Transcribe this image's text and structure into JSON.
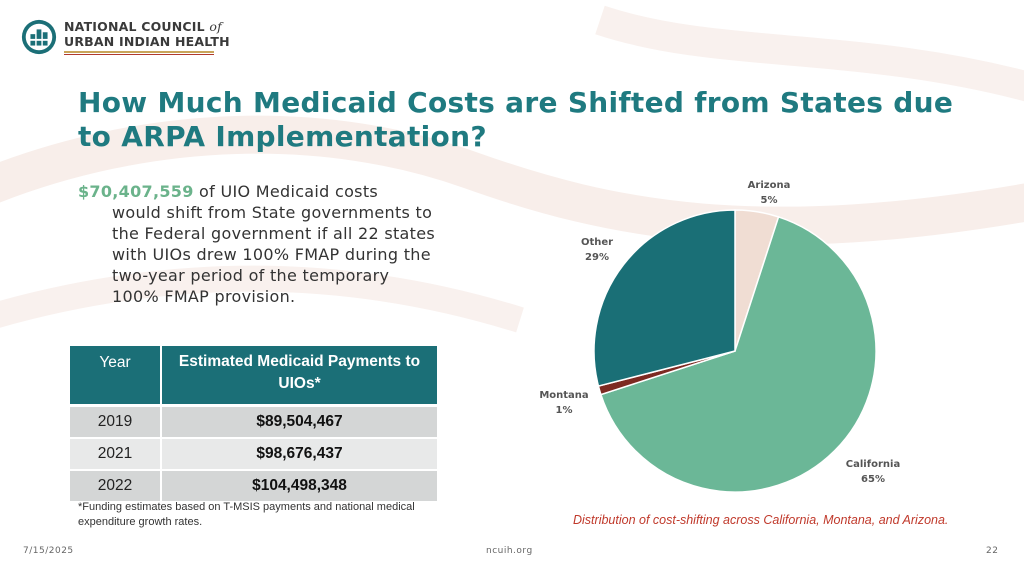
{
  "logo": {
    "line1": "NATIONAL COUNCIL",
    "line1_italic": "of",
    "line2": "URBAN INDIAN HEALTH"
  },
  "title": "How Much Medicaid Costs are Shifted from States due to ARPA Implementation?",
  "intro": {
    "amount": "$70,407,559",
    "first_line_rest": " of UIO Medicaid costs",
    "continuation": "would shift from State governments to the Federal government if all 22 states with UIOs drew 100% FMAP during the two-year period of the temporary 100% FMAP provision."
  },
  "table": {
    "headers": [
      "Year",
      "Estimated Medicaid Payments to UIOs*"
    ],
    "rows": [
      {
        "year": "2019",
        "value": "$89,504,467"
      },
      {
        "year": "2021",
        "value": "$98,676,437"
      },
      {
        "year": "2022",
        "value": "$104,498,348"
      }
    ]
  },
  "footnote": "*Funding estimates based on T-MSIS payments and national medical expenditure growth rates.",
  "chart_data": {
    "type": "pie",
    "title": "",
    "categories": [
      "Arizona",
      "California",
      "Montana",
      "Other"
    ],
    "values": [
      5,
      65,
      1,
      29
    ],
    "labels": [
      "5%",
      "65%",
      "1%",
      "29%"
    ],
    "colors": [
      "#f0ddd3",
      "#6bb797",
      "#7d2a22",
      "#1a6f76"
    ],
    "start_angle_deg": 0,
    "direction": "clockwise"
  },
  "caption": "Distribution of cost-shifting across California, Montana, and Arizona.",
  "footer": {
    "date": "7/15/2025",
    "site": "ncuih.org",
    "page": "22"
  },
  "colors": {
    "title": "#1f7a80",
    "accent_green": "#6bb38b",
    "table_header": "#1b6f77",
    "caption": "#c0392b"
  }
}
